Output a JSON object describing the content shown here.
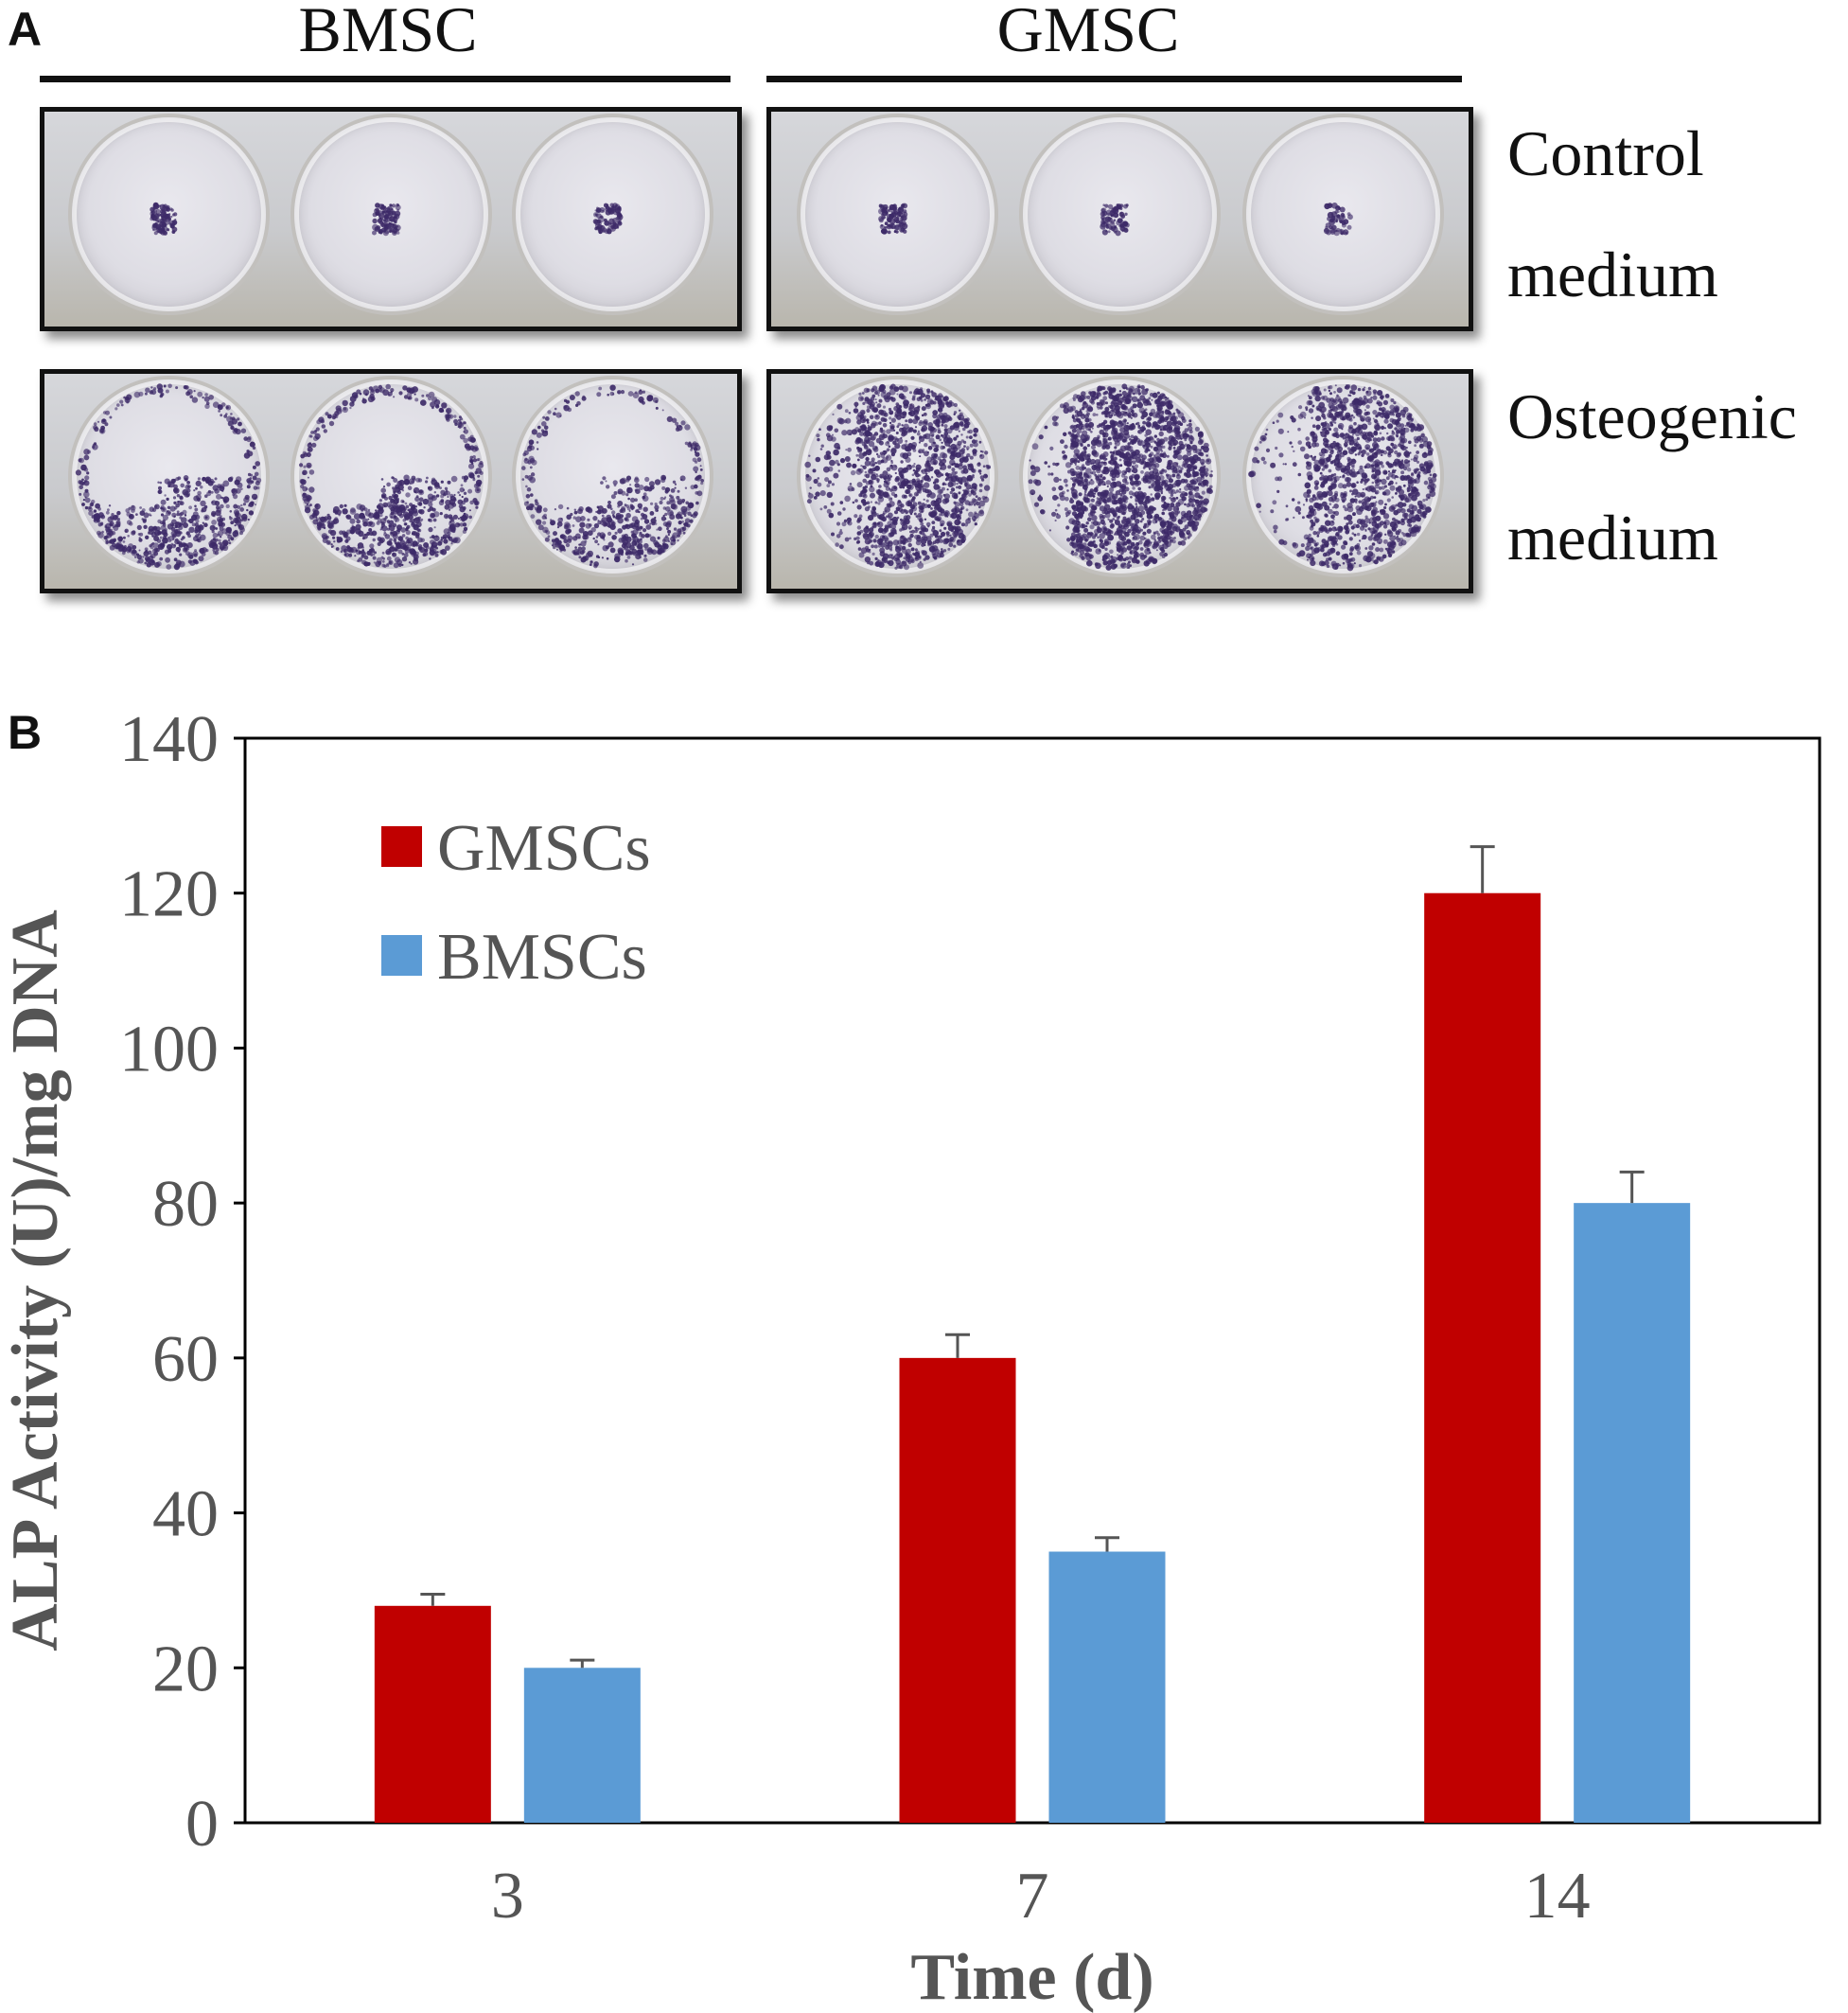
{
  "panel_a": {
    "letter": "A",
    "groups": [
      "BMSC",
      "GMSC"
    ],
    "rows": [
      {
        "line1": "Control",
        "line2": "medium"
      },
      {
        "line1": "Osteogenic",
        "line2": "medium"
      }
    ],
    "stain_color": "#3d2a68",
    "wells": [
      {
        "group": "BMSC",
        "row": "Control medium",
        "well": 1,
        "stain": 0.03
      },
      {
        "group": "BMSC",
        "row": "Control medium",
        "well": 2,
        "stain": 0.03
      },
      {
        "group": "BMSC",
        "row": "Control medium",
        "well": 3,
        "stain": 0.02
      },
      {
        "group": "GMSC",
        "row": "Control medium",
        "well": 1,
        "stain": 0.03
      },
      {
        "group": "GMSC",
        "row": "Control medium",
        "well": 2,
        "stain": 0.02
      },
      {
        "group": "GMSC",
        "row": "Control medium",
        "well": 3,
        "stain": 0.01
      },
      {
        "group": "BMSC",
        "row": "Osteogenic medium",
        "well": 1,
        "stain": 0.25
      },
      {
        "group": "BMSC",
        "row": "Osteogenic medium",
        "well": 2,
        "stain": 0.3
      },
      {
        "group": "BMSC",
        "row": "Osteogenic medium",
        "well": 3,
        "stain": 0.22
      },
      {
        "group": "GMSC",
        "row": "Osteogenic medium",
        "well": 1,
        "stain": 0.6
      },
      {
        "group": "GMSC",
        "row": "Osteogenic medium",
        "well": 2,
        "stain": 0.75
      },
      {
        "group": "GMSC",
        "row": "Osteogenic medium",
        "well": 3,
        "stain": 0.55
      }
    ]
  },
  "panel_b": {
    "letter": "B"
  },
  "chart_data": {
    "type": "bar",
    "title": "",
    "xlabel": "Time (d)",
    "ylabel": "ALP Activity (U)/mg DNA",
    "categories": [
      "3",
      "7",
      "14"
    ],
    "ylim": [
      0,
      140
    ],
    "yticks": [
      0,
      20,
      40,
      60,
      80,
      100,
      120,
      140
    ],
    "grid": false,
    "legend_position": "top-left",
    "series": [
      {
        "name": "GMSCs",
        "color": "#c00000",
        "values": [
          28,
          60,
          120
        ],
        "errors": [
          1.5,
          3,
          6
        ]
      },
      {
        "name": "BMSCs",
        "color": "#5b9bd5",
        "values": [
          20,
          35,
          80
        ],
        "errors": [
          1,
          1.8,
          4
        ]
      }
    ]
  }
}
